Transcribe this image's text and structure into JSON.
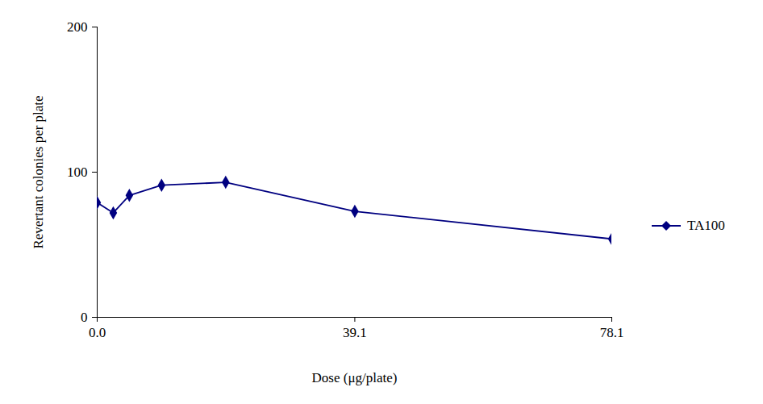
{
  "chart_data": {
    "type": "line",
    "xlabel": "Dose (μg/plate)",
    "ylabel": "Revertant colonies per plate",
    "x": [
      0,
      2.44,
      4.88,
      9.77,
      19.5,
      39.1,
      78.1
    ],
    "series": [
      {
        "name": "TA100",
        "color": "#000080",
        "marker": "diamond",
        "values": [
          79,
          72,
          84,
          91,
          93,
          73,
          54
        ]
      }
    ],
    "xlim": [
      0,
      78.1
    ],
    "xticks": [
      {
        "value": 0,
        "label": "0.0"
      },
      39.1,
      78.1
    ],
    "ylim": [
      0,
      200
    ],
    "yticks": [
      0,
      100,
      200
    ],
    "grid": false,
    "legend": "right"
  }
}
